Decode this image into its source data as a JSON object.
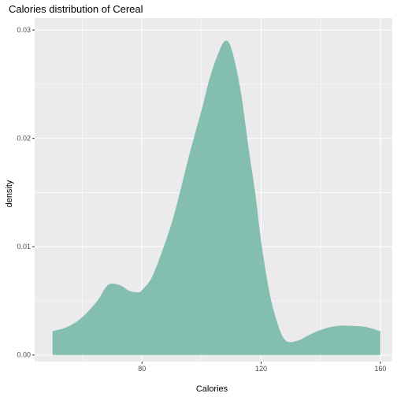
{
  "chart_data": {
    "type": "area",
    "title": "Calories distribution of Cereal",
    "xlabel": "Calories",
    "ylabel": "density",
    "xlim": [
      44,
      164
    ],
    "ylim": [
      -0.0006,
      0.0311
    ],
    "x_ticks": [
      80,
      120,
      160
    ],
    "x_minor_ticks": [
      60,
      100,
      140
    ],
    "y_ticks": [
      0.0,
      0.01,
      0.02,
      0.03
    ],
    "y_tick_labels": [
      "0.00",
      "0.01",
      "0.02",
      "0.03"
    ],
    "y_minor_ticks": [
      0.005,
      0.015,
      0.025
    ],
    "grid": true,
    "background_color": "#ebebeb",
    "grid_color": "#ffffff",
    "fill_color": "#69b3a2",
    "fill_opacity": 0.8,
    "series": [
      {
        "x": [
          50,
          55,
          60,
          65,
          68,
          70,
          73,
          76,
          79,
          80,
          83,
          86,
          90,
          93,
          96,
          100,
          103,
          106,
          108,
          110,
          113,
          116,
          118,
          120,
          123,
          126,
          128,
          130,
          133,
          135,
          138,
          142,
          146,
          150,
          155,
          160
        ],
        "y": [
          0.0022,
          0.0026,
          0.0035,
          0.005,
          0.0063,
          0.0066,
          0.0064,
          0.0059,
          0.0058,
          0.006,
          0.007,
          0.009,
          0.0122,
          0.0153,
          0.0186,
          0.0226,
          0.0258,
          0.0281,
          0.029,
          0.0283,
          0.0246,
          0.0187,
          0.015,
          0.0105,
          0.0055,
          0.0025,
          0.0014,
          0.0012,
          0.0014,
          0.0017,
          0.0021,
          0.0025,
          0.0027,
          0.0027,
          0.0026,
          0.0022
        ]
      }
    ]
  }
}
